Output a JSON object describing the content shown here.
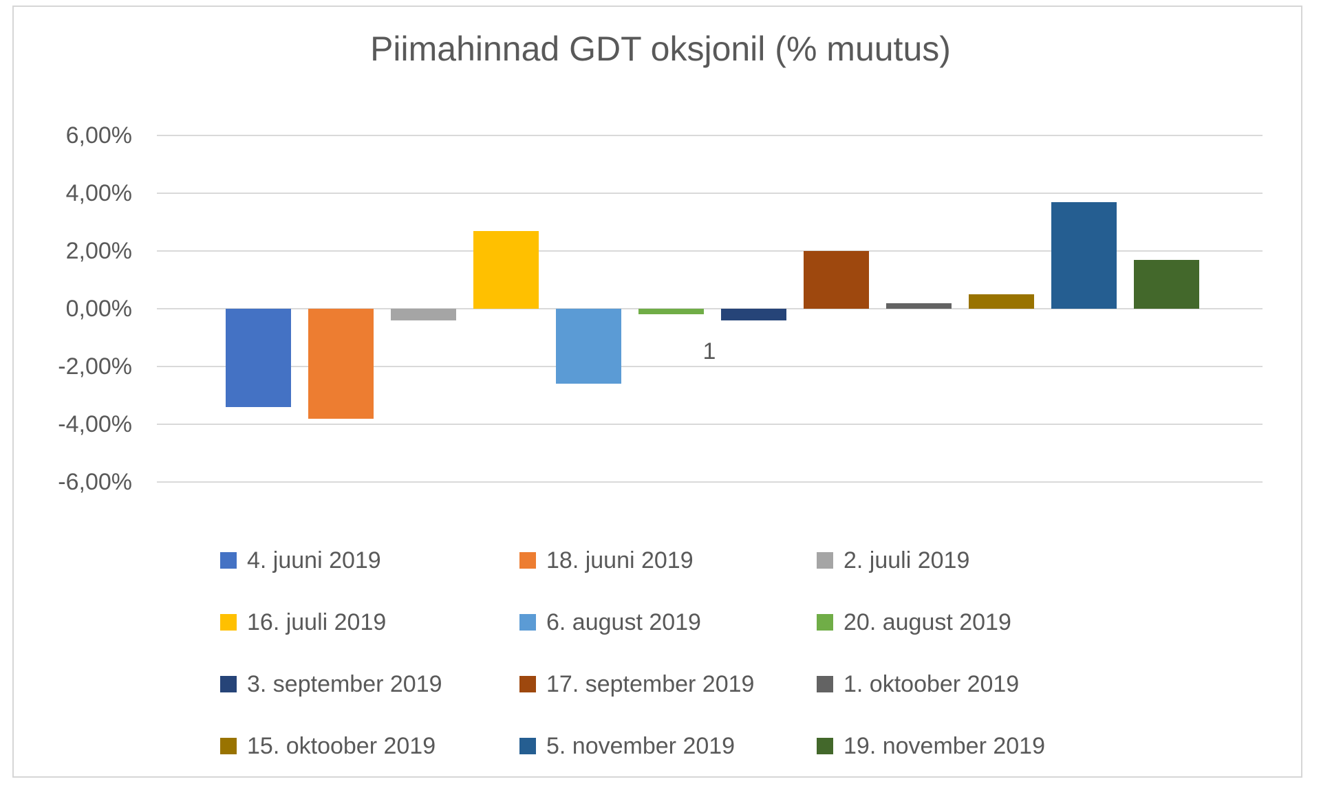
{
  "chart_data": {
    "type": "bar",
    "title": "Piimahinnad GDT oksjonil (% muutus)",
    "categories": [
      "1"
    ],
    "xlabel": "",
    "ylabel": "",
    "ylim": [
      -6.5,
      7.0
    ],
    "grid": true,
    "legend_position": "bottom",
    "value_format": "percent, comma decimal separator",
    "y_ticks": [
      {
        "label": "6,00%",
        "value": 6
      },
      {
        "label": "4,00%",
        "value": 4
      },
      {
        "label": "2,00%",
        "value": 2
      },
      {
        "label": "0,00%",
        "value": 0
      },
      {
        "label": "-2,00%",
        "value": -2
      },
      {
        "label": "-4,00%",
        "value": -4
      },
      {
        "label": "-6,00%",
        "value": -6
      }
    ],
    "series": [
      {
        "name": "4. juuni 2019",
        "value": -3.4,
        "color": "#4472C4"
      },
      {
        "name": "18. juuni 2019",
        "value": -3.8,
        "color": "#ED7D31"
      },
      {
        "name": "2. juuli 2019",
        "value": -0.4,
        "color": "#A5A5A5"
      },
      {
        "name": "16. juuli 2019",
        "value": 2.7,
        "color": "#FFC000"
      },
      {
        "name": "6. august 2019",
        "value": -2.6,
        "color": "#5B9BD5"
      },
      {
        "name": "20. august 2019",
        "value": -0.2,
        "color": "#70AD47"
      },
      {
        "name": "3. september 2019",
        "value": -0.4,
        "color": "#264478"
      },
      {
        "name": "17. september 2019",
        "value": 2.0,
        "color": "#9E480E"
      },
      {
        "name": "1. oktoober 2019",
        "value": 0.2,
        "color": "#636363"
      },
      {
        "name": "15. oktoober 2019",
        "value": 0.5,
        "color": "#997300"
      },
      {
        "name": "5. november 2019",
        "value": 3.7,
        "color": "#255E91"
      },
      {
        "name": "19. november 2019",
        "value": 1.7,
        "color": "#43682B"
      }
    ],
    "colors": {
      "title_text": "#595959",
      "axis_text": "#595959",
      "gridline": "#D9D9D9",
      "chart_border": "#D6D6D6",
      "background": "#FFFFFF"
    }
  }
}
